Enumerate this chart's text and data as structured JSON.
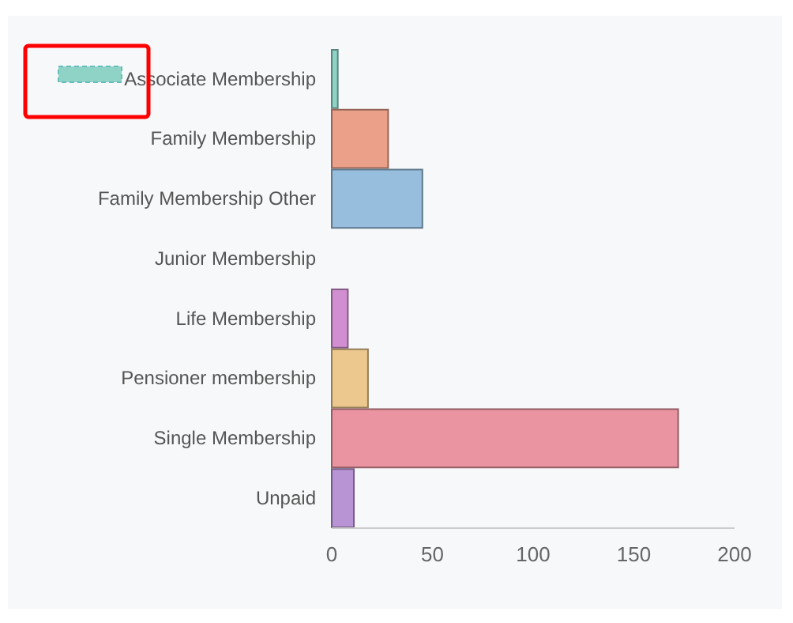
{
  "chart_data": {
    "type": "bar",
    "orientation": "horizontal",
    "categories": [
      "Associate Membership",
      "Family Membership",
      "Family Membership Other",
      "Junior Membership",
      "Life Membership",
      "Pensioner membership",
      "Single Membership",
      "Unpaid"
    ],
    "values": [
      3,
      28,
      45,
      0,
      8,
      18,
      172,
      11
    ],
    "colors": [
      "#8fd3c6",
      "#eba08a",
      "#97bfdd",
      "#8fd39a",
      "#d18fd1",
      "#ecc88e",
      "#e994a0",
      "#b994d4"
    ],
    "xlim": [
      0,
      200
    ],
    "xticks": [
      0,
      50,
      100,
      150,
      200
    ],
    "grid": false
  }
}
